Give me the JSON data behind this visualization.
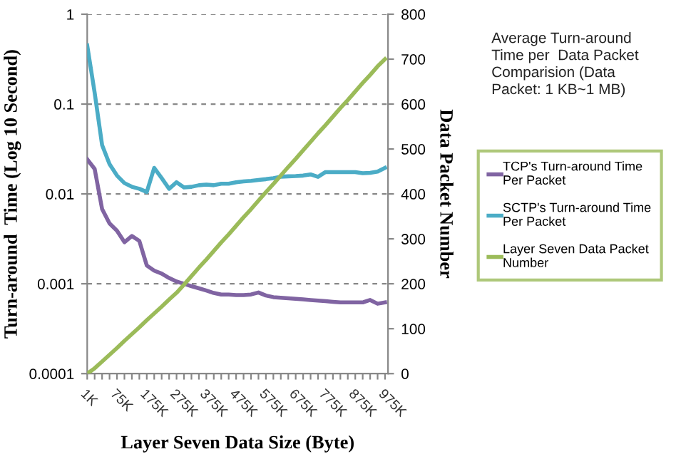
{
  "chart_data": {
    "type": "line",
    "title": "Average Turn-around\nTime per  Data Packet\nComparision (Data\nPacket: 1 KB~1 MB)",
    "xlabel": "Layer Seven Data Size (Byte)",
    "ylabel": "Turn-around  Time (Log 10 Second)",
    "y2label": "Data Packet Number",
    "categories": [
      "1K",
      null,
      null,
      null,
      "75K",
      null,
      null,
      null,
      "175K",
      null,
      null,
      null,
      "275K",
      null,
      null,
      null,
      "375K",
      null,
      null,
      null,
      "475K",
      null,
      null,
      null,
      "575K",
      null,
      null,
      null,
      "675K",
      null,
      null,
      null,
      "775K",
      null,
      null,
      null,
      "875K",
      null,
      null,
      null,
      "975K"
    ],
    "series": [
      {
        "name": "TCP's Turn-around Time\nPer Packet",
        "color": "#8064a2",
        "values": [
          0.0243,
          0.019,
          0.0068,
          0.0047,
          0.0039,
          0.0029,
          0.0034,
          0.003,
          0.0016,
          0.0014,
          0.0013,
          0.00116,
          0.00106,
          0.001,
          0.00094,
          0.00089,
          0.00084,
          0.00079,
          0.00076,
          0.00076,
          0.00075,
          0.00075,
          0.00076,
          0.0008,
          0.00074,
          0.00071,
          0.0007,
          0.00069,
          0.00068,
          0.00067,
          0.00066,
          0.00065,
          0.00064,
          0.00063,
          0.00062,
          0.00062,
          0.00062,
          0.00062,
          0.00066,
          0.0006,
          0.00062
        ]
      },
      {
        "name": "SCTP's Turn-around Time\nPer Packet",
        "color": "#4bacc6",
        "values": [
          0.45,
          0.134,
          0.035,
          0.0215,
          0.016,
          0.0132,
          0.012,
          0.0114,
          0.0105,
          0.0195,
          0.015,
          0.0114,
          0.0135,
          0.0118,
          0.012,
          0.0125,
          0.0127,
          0.0125,
          0.013,
          0.013,
          0.0135,
          0.0138,
          0.014,
          0.0143,
          0.0146,
          0.015,
          0.0155,
          0.0157,
          0.0158,
          0.016,
          0.0165,
          0.0155,
          0.0175,
          0.0175,
          0.0175,
          0.0175,
          0.0175,
          0.017,
          0.0172,
          0.0177,
          0.0195
        ]
      },
      {
        "name": "Layer Seven Data Packet\nNumber",
        "color": "#9bbb59",
        "axis": "y2",
        "values": [
          0,
          12,
          27,
          42,
          57,
          73,
          88,
          103,
          119,
          134,
          149,
          165,
          180,
          198,
          217,
          236,
          254,
          273,
          292,
          310,
          329,
          348,
          366,
          385,
          404,
          422,
          441,
          460,
          478,
          497,
          516,
          535,
          553,
          572,
          591,
          609,
          628,
          647,
          665,
          684,
          700
        ]
      }
    ],
    "log": "y",
    "ylim": [
      0.0001,
      1
    ],
    "yticks": [
      0.0001,
      0.001,
      0.01,
      0.1,
      1
    ],
    "y2lim": [
      0,
      800
    ],
    "y2ticks": [
      0,
      100,
      200,
      300,
      400,
      500,
      600,
      700,
      800
    ],
    "grid": "y",
    "legend": "right",
    "marker": "none",
    "line_style": "solid"
  }
}
